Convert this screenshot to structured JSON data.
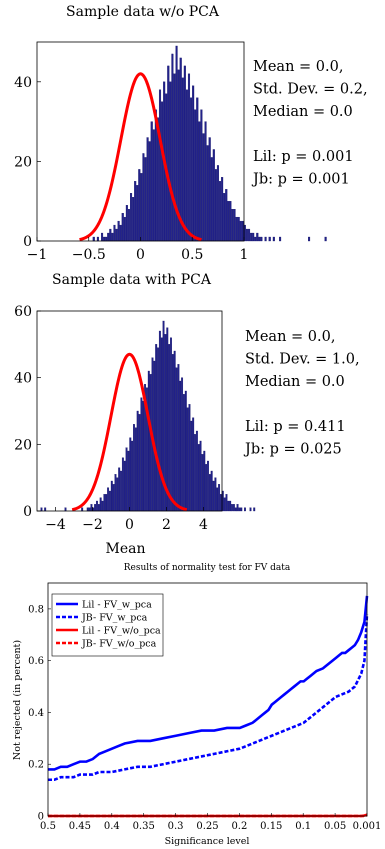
{
  "chart_data": [
    {
      "type": "bar",
      "title": "Sample data w/o PCA",
      "xlabel": "",
      "ylabel": "",
      "xlim": [
        -1,
        1
      ],
      "ylim": [
        0,
        50
      ],
      "xticks": [
        "−1",
        "−0.5",
        "0",
        "0.5",
        "1"
      ],
      "yticks": [
        "0",
        "20",
        "40"
      ],
      "annotations": [
        "Mean = 0.0,",
        "Std. Dev. = 0.2,",
        "Median = 0.0",
        "",
        "Lil: p = 0.001",
        "Jb: p = 0.001"
      ],
      "fit": {
        "type": "normal",
        "mean": 0.0,
        "std": 0.19,
        "peak": 42
      },
      "histogram": {
        "bin_start": -0.46,
        "bin_width": 0.02,
        "values": [
          1,
          0,
          1,
          0,
          2,
          1,
          1,
          2,
          3,
          2,
          4,
          3,
          5,
          4,
          7,
          6,
          9,
          8,
          12,
          11,
          15,
          14,
          18,
          17,
          22,
          21,
          26,
          25,
          30,
          28,
          33,
          31,
          38,
          35,
          40,
          37,
          44,
          40,
          47,
          42,
          49,
          43,
          46,
          41,
          44,
          38,
          42,
          36,
          39,
          33,
          36,
          30,
          33,
          27,
          30,
          24,
          26,
          21,
          23,
          18,
          19,
          15,
          16,
          12,
          13,
          10,
          10,
          8,
          8,
          6,
          6,
          5,
          5,
          4,
          3,
          3,
          2,
          2,
          1,
          2,
          1,
          1,
          0,
          1,
          0,
          1,
          0,
          1,
          0,
          0,
          1,
          0,
          0,
          0,
          0,
          0,
          0,
          0,
          0,
          0,
          0,
          0,
          0,
          0,
          1,
          0,
          0,
          0,
          0,
          0,
          0,
          0,
          1
        ]
      }
    },
    {
      "type": "bar",
      "title": "Sample data with PCA",
      "xlabel": "Mean",
      "ylabel": "",
      "xlim": [
        -5,
        5
      ],
      "ylim": [
        0,
        60
      ],
      "xticks": [
        "−4",
        "−2",
        "0",
        "2",
        "4"
      ],
      "yticks": [
        "0",
        "20",
        "40",
        "60"
      ],
      "annotations": [
        "Mean = 0.0,",
        "Std. Dev. = 1.0,",
        "Median = 0.0",
        "",
        "Lil: p = 0.411",
        "Jb: p = 0.025"
      ],
      "fit": {
        "type": "normal",
        "mean": 0.0,
        "std": 1.0,
        "peak": 47
      },
      "histogram": {
        "bin_start": -4.8,
        "bin_width": 0.1,
        "values": [
          1,
          0,
          1,
          0,
          0,
          0,
          0,
          0,
          0,
          0,
          0,
          0,
          0,
          1,
          0,
          0,
          0,
          0,
          0,
          0,
          0,
          0,
          1,
          0,
          0,
          1,
          1,
          2,
          1,
          2,
          3,
          2,
          4,
          3,
          5,
          5,
          7,
          6,
          9,
          8,
          11,
          10,
          13,
          12,
          16,
          15,
          19,
          18,
          22,
          21,
          26,
          25,
          30,
          29,
          34,
          33,
          38,
          37,
          42,
          41,
          46,
          45,
          50,
          49,
          54,
          52,
          57,
          53,
          55,
          50,
          52,
          47,
          48,
          43,
          44,
          39,
          40,
          35,
          36,
          31,
          32,
          27,
          28,
          23,
          24,
          20,
          21,
          17,
          18,
          14,
          15,
          11,
          12,
          9,
          10,
          7,
          8,
          5,
          6,
          4,
          5,
          3,
          3,
          2,
          2,
          1,
          2,
          1,
          1,
          0,
          1,
          0,
          0,
          1,
          0,
          1
        ]
      }
    },
    {
      "type": "line",
      "title": "Results of normality test for FV data",
      "xlabel": "Significance level",
      "ylabel": "Not rejected (in percent)",
      "xlim": [
        0.5,
        0.001
      ],
      "ylim": [
        0,
        0.9
      ],
      "xticks": [
        "0.5",
        "0.45",
        "0.4",
        "0.35",
        "0.3",
        "0.25",
        "0.2",
        "0.15",
        "0.1",
        "0.05",
        "0.001"
      ],
      "yticks": [
        "0",
        "0.2",
        "0.4",
        "0.6",
        "0.8"
      ],
      "legend_position": "top-left",
      "series": [
        {
          "name": "Lil - FV_w_pca",
          "color": "#0000ff",
          "dash": "solid",
          "x": [
            0.5,
            0.49,
            0.48,
            0.47,
            0.46,
            0.45,
            0.44,
            0.43,
            0.42,
            0.41,
            0.4,
            0.39,
            0.38,
            0.36,
            0.34,
            0.32,
            0.3,
            0.28,
            0.26,
            0.24,
            0.22,
            0.2,
            0.19,
            0.18,
            0.175,
            0.17,
            0.165,
            0.16,
            0.155,
            0.15,
            0.145,
            0.14,
            0.135,
            0.13,
            0.125,
            0.12,
            0.115,
            0.11,
            0.105,
            0.1,
            0.095,
            0.09,
            0.085,
            0.08,
            0.07,
            0.06,
            0.05,
            0.045,
            0.04,
            0.035,
            0.03,
            0.025,
            0.02,
            0.015,
            0.01,
            0.005,
            0.001
          ],
          "y": [
            0.18,
            0.18,
            0.19,
            0.19,
            0.2,
            0.21,
            0.21,
            0.22,
            0.24,
            0.25,
            0.26,
            0.27,
            0.28,
            0.29,
            0.29,
            0.3,
            0.31,
            0.32,
            0.33,
            0.33,
            0.34,
            0.34,
            0.35,
            0.36,
            0.37,
            0.38,
            0.39,
            0.4,
            0.41,
            0.43,
            0.44,
            0.45,
            0.46,
            0.47,
            0.48,
            0.49,
            0.5,
            0.51,
            0.52,
            0.52,
            0.53,
            0.54,
            0.55,
            0.56,
            0.57,
            0.59,
            0.61,
            0.62,
            0.63,
            0.63,
            0.64,
            0.65,
            0.66,
            0.68,
            0.71,
            0.75,
            0.85
          ]
        },
        {
          "name": "JB- FV_w_pca",
          "color": "#0000ff",
          "dash": "dashed",
          "x": [
            0.5,
            0.49,
            0.48,
            0.47,
            0.46,
            0.45,
            0.44,
            0.43,
            0.42,
            0.41,
            0.4,
            0.38,
            0.36,
            0.34,
            0.32,
            0.3,
            0.28,
            0.26,
            0.24,
            0.22,
            0.2,
            0.19,
            0.18,
            0.17,
            0.16,
            0.15,
            0.14,
            0.13,
            0.12,
            0.11,
            0.1,
            0.09,
            0.08,
            0.07,
            0.06,
            0.05,
            0.04,
            0.03,
            0.02,
            0.01,
            0.005,
            0.001
          ],
          "y": [
            0.14,
            0.14,
            0.15,
            0.15,
            0.15,
            0.16,
            0.16,
            0.16,
            0.17,
            0.17,
            0.17,
            0.18,
            0.19,
            0.19,
            0.2,
            0.21,
            0.22,
            0.23,
            0.24,
            0.25,
            0.26,
            0.27,
            0.28,
            0.29,
            0.3,
            0.31,
            0.32,
            0.33,
            0.34,
            0.35,
            0.36,
            0.38,
            0.4,
            0.42,
            0.44,
            0.46,
            0.47,
            0.48,
            0.5,
            0.55,
            0.6,
            0.78
          ]
        },
        {
          "name": "Lil - FV_w/o_pca",
          "color": "#ff0000",
          "dash": "solid",
          "x": [
            0.5,
            0.4,
            0.3,
            0.2,
            0.1,
            0.05,
            0.02,
            0.01,
            0.005,
            0.001
          ],
          "y": [
            0,
            0,
            0,
            0,
            0,
            0,
            0,
            0,
            0.002,
            0.005
          ]
        },
        {
          "name": "JB- FV_w/o_pca",
          "color": "#ff0000",
          "dash": "dashed",
          "x": [
            0.5,
            0.4,
            0.3,
            0.2,
            0.1,
            0.05,
            0.02,
            0.01,
            0.005,
            0.001
          ],
          "y": [
            0,
            0,
            0,
            0,
            0,
            0,
            0,
            0,
            0,
            0.003
          ]
        }
      ]
    }
  ]
}
